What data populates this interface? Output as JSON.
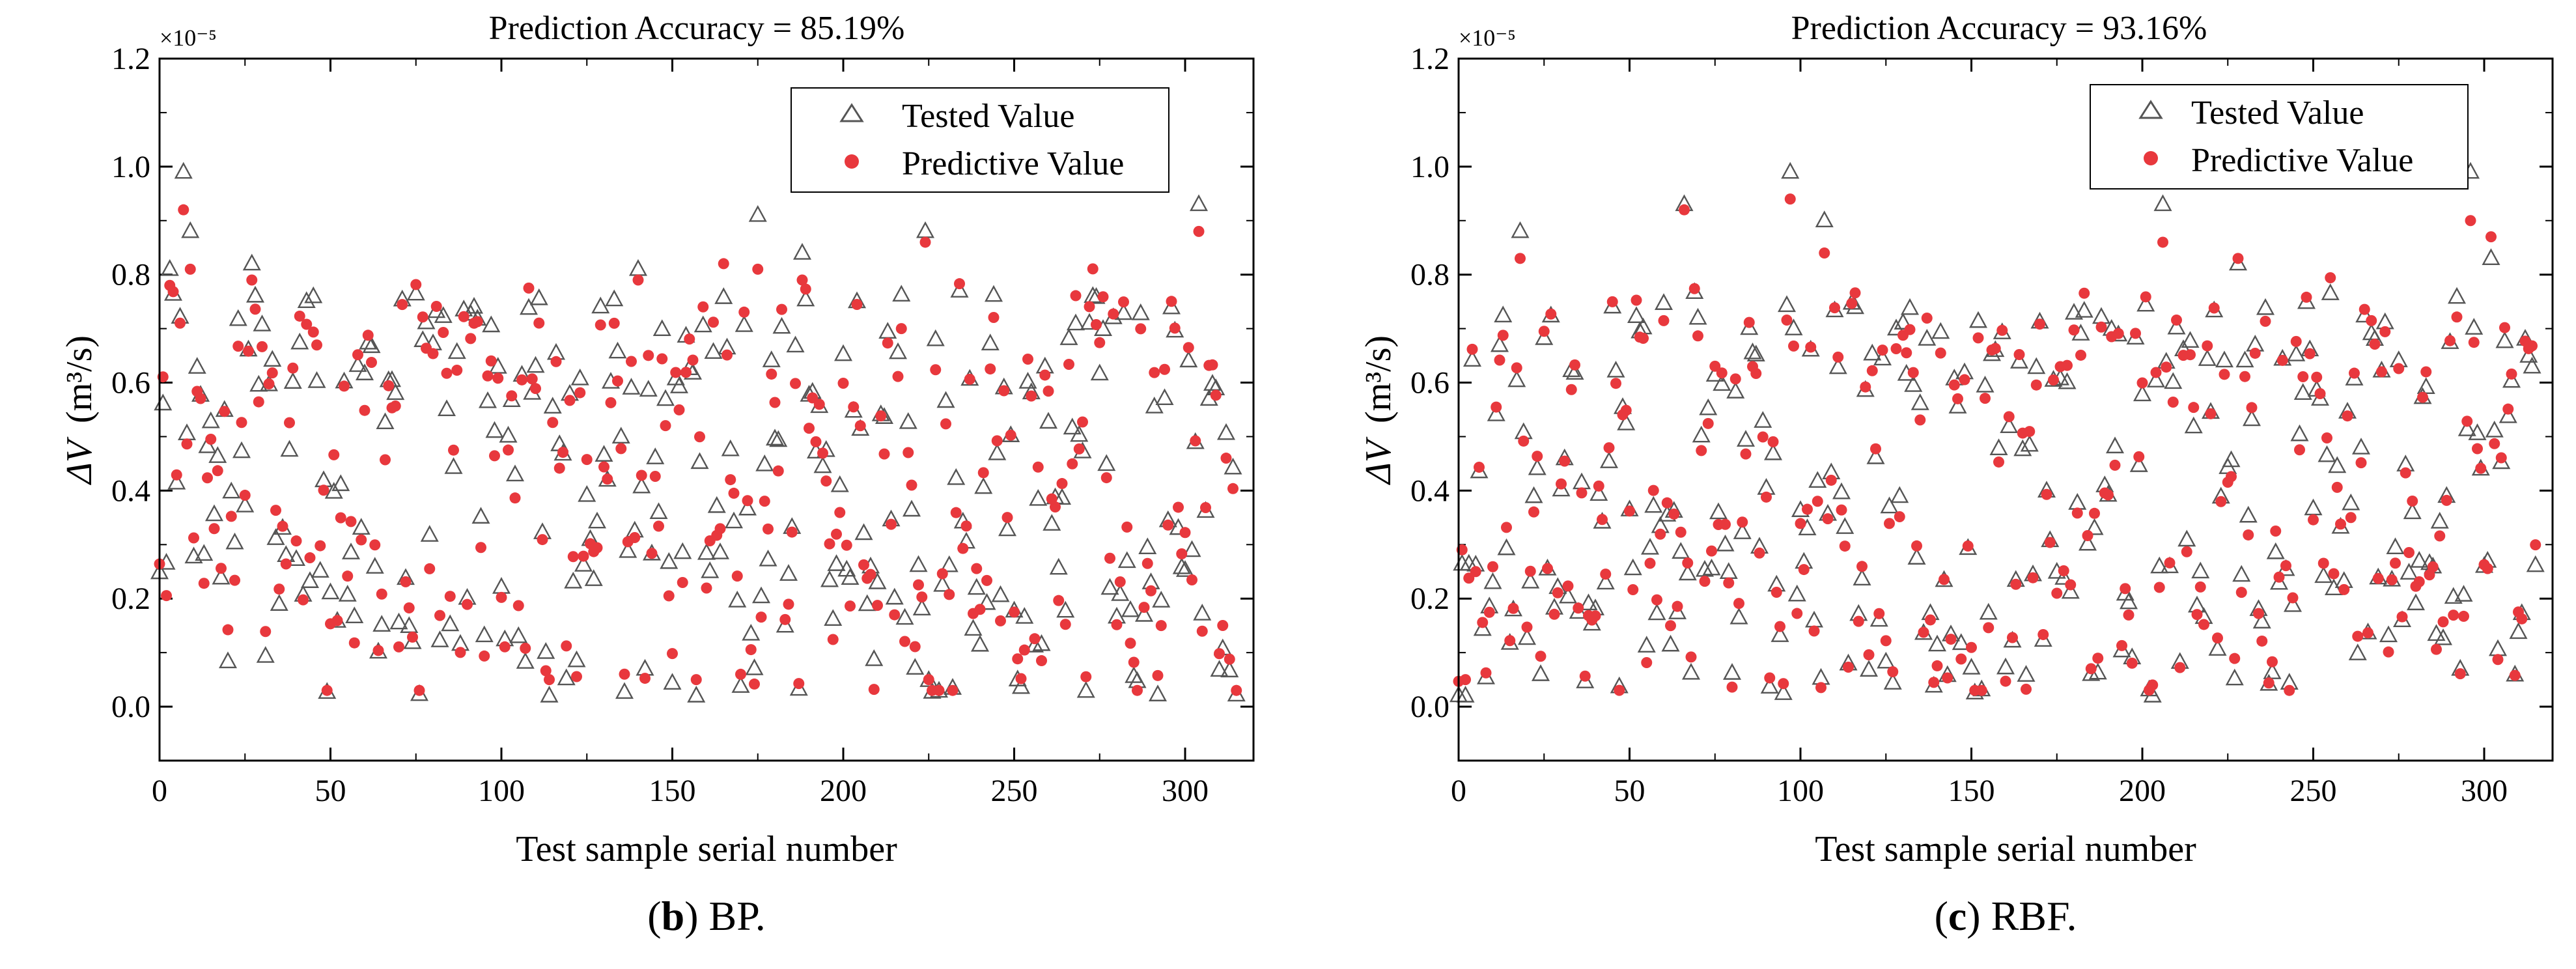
{
  "chart_data": [
    {
      "type": "scatter",
      "title": "Prediction  Accuracy = 85.19%",
      "xlabel": "Test sample serial number",
      "ylabel": "ΔV (m³/s)",
      "ylabel_main": "ΔV",
      "ylabel_unit": "(m³/s)",
      "scale_label": "×10⁻⁵",
      "xlim": [
        0,
        320
      ],
      "ylim": [
        -0.1,
        1.2
      ],
      "xticks": [
        0,
        50,
        100,
        150,
        200,
        250,
        300
      ],
      "yticks": [
        0.0,
        0.2,
        0.4,
        0.6,
        0.8,
        1.0,
        1.2
      ],
      "legend_position": "top-right",
      "series_names": [
        "Tested Value",
        "Predictive Value"
      ],
      "series_colors": [
        "#555555",
        "#e8383d"
      ],
      "n_points": 316,
      "highlights": [
        {
          "x": 3,
          "tested": 0.81,
          "predicted": 0.78
        },
        {
          "x": 7,
          "tested": 0.99,
          "predicted": 0.92
        },
        {
          "x": 9,
          "tested": 0.88,
          "predicted": 0.81
        },
        {
          "x": 27,
          "tested": 0.82,
          "predicted": 0.79
        },
        {
          "x": 92,
          "tested": 0.74,
          "predicted": 0.71
        },
        {
          "x": 140,
          "tested": 0.81,
          "predicted": 0.79
        },
        {
          "x": 175,
          "tested": 0.91,
          "predicted": 0.81
        },
        {
          "x": 188,
          "tested": 0.84,
          "predicted": 0.79
        },
        {
          "x": 224,
          "tested": 0.88,
          "predicted": 0.86
        },
        {
          "x": 304,
          "tested": 0.93,
          "predicted": 0.88
        },
        {
          "x": 114,
          "tested": 0.02,
          "predicted": 0.05
        },
        {
          "x": 157,
          "tested": 0.02,
          "predicted": 0.05
        }
      ],
      "seed": 7,
      "caption_letter": "b",
      "caption_text": " BP."
    },
    {
      "type": "scatter",
      "title": "Prediction  Accuracy = 93.16%",
      "xlabel": "Test sample serial number",
      "ylabel": "ΔV (m³/s)",
      "ylabel_main": "ΔV",
      "ylabel_unit": "(m³/s)",
      "scale_label": "×10⁻⁵",
      "xlim": [
        0,
        320
      ],
      "ylim": [
        -0.1,
        1.2
      ],
      "xticks": [
        0,
        50,
        100,
        150,
        200,
        250,
        300
      ],
      "yticks": [
        0.0,
        0.2,
        0.4,
        0.6,
        0.8,
        1.0,
        1.2
      ],
      "legend_position": "top-right",
      "series_names": [
        "Tested Value",
        "Predictive Value"
      ],
      "series_colors": [
        "#555555",
        "#e8383d"
      ],
      "n_points": 316,
      "highlights": [
        {
          "x": 2,
          "tested": 0.02,
          "predicted": 0.05
        },
        {
          "x": 18,
          "tested": 0.88,
          "predicted": 0.83
        },
        {
          "x": 66,
          "tested": 0.93,
          "predicted": 0.92
        },
        {
          "x": 97,
          "tested": 0.99,
          "predicted": 0.94
        },
        {
          "x": 107,
          "tested": 0.9,
          "predicted": 0.84
        },
        {
          "x": 206,
          "tested": 0.93,
          "predicted": 0.86
        },
        {
          "x": 228,
          "tested": 0.82,
          "predicted": 0.83
        },
        {
          "x": 296,
          "tested": 0.99,
          "predicted": 0.9
        },
        {
          "x": 302,
          "tested": 0.83,
          "predicted": 0.87
        },
        {
          "x": 203,
          "tested": 0.02,
          "predicted": 0.04
        }
      ],
      "seed": 19,
      "caption_letter": "c",
      "caption_text": " RBF."
    }
  ]
}
